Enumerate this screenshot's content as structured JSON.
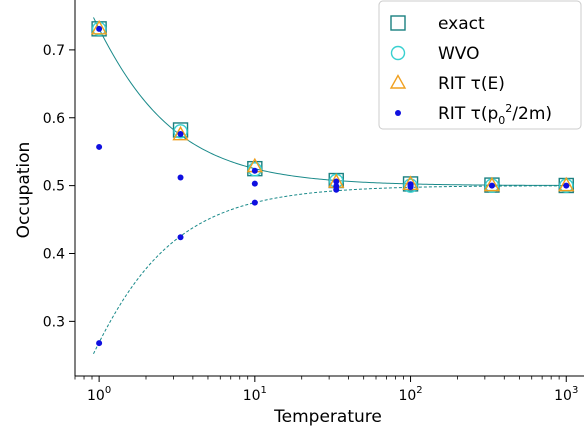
{
  "chart_data": {
    "type": "scatter",
    "xscale": "log",
    "xlabel": "Temperature",
    "ylabel": "Occupation",
    "xlim": [
      0.7,
      1300
    ],
    "ylim": [
      0.2195,
      0.7735
    ],
    "grid": false,
    "legend_position": "top-right",
    "x_ticks": [
      {
        "value": 1,
        "base": "10",
        "exp": "0"
      },
      {
        "value": 10,
        "base": "10",
        "exp": "1"
      },
      {
        "value": 100,
        "base": "10",
        "exp": "2"
      },
      {
        "value": 1000,
        "base": "10",
        "exp": "3"
      }
    ],
    "y_ticks": [
      {
        "value": 0.3,
        "label": "0.3"
      },
      {
        "value": 0.4,
        "label": "0.4"
      },
      {
        "value": 0.5,
        "label": "0.5"
      },
      {
        "value": 0.6,
        "label": "0.6"
      },
      {
        "value": 0.7,
        "label": "0.7"
      }
    ],
    "curves": [
      {
        "name": "upper-curve",
        "style": "solid",
        "color": "#1a8a8a",
        "sign": 1
      },
      {
        "name": "lower-curve",
        "style": "dashed",
        "color": "#1a8a8a",
        "sign": -1
      }
    ],
    "curve_x_range": [
      0.92,
      1050
    ],
    "series": [
      {
        "name": "exact",
        "marker": "square",
        "color": "#1a8080",
        "x": [
          1,
          3.333,
          10,
          33.33,
          100,
          333.3,
          1000
        ],
        "y": [
          0.731,
          0.582,
          0.525,
          0.5075,
          0.5025,
          0.5008,
          0.5002
        ]
      },
      {
        "name": "WVO",
        "marker": "circle",
        "color": "#38d0d0",
        "x": [
          1,
          3.333,
          10,
          33.33,
          100,
          333.3,
          1000
        ],
        "y": [
          0.731,
          0.58,
          0.524,
          0.507,
          0.5,
          0.5,
          0.5
        ]
      },
      {
        "name": "RIT τ(E)",
        "marker": "triangle",
        "color": "#f0a020",
        "x": [
          1,
          3.333,
          10,
          33.33,
          100,
          333.3,
          1000
        ],
        "y": [
          0.731,
          0.575,
          0.528,
          0.505,
          0.502,
          0.5,
          0.5
        ]
      },
      {
        "name": "RIT τ(p₀²/2m)",
        "marker": "dot",
        "color": "#1010e0",
        "x": [
          1,
          1,
          1,
          3.333,
          3.333,
          3.333,
          10,
          10,
          10,
          33.33,
          33.33,
          33.33,
          100,
          100,
          100,
          333.3,
          1000
        ],
        "y": [
          0.731,
          0.557,
          0.268,
          0.576,
          0.512,
          0.424,
          0.522,
          0.503,
          0.475,
          0.506,
          0.499,
          0.494,
          0.502,
          0.5,
          0.498,
          0.5,
          0.5
        ]
      }
    ],
    "legend": [
      {
        "marker": "square",
        "color": "#1a8080",
        "text": "exact"
      },
      {
        "marker": "circle",
        "color": "#38d0d0",
        "text": "WVO"
      },
      {
        "marker": "triangle",
        "color": "#f0a020",
        "text": "RIT τ(E)"
      },
      {
        "marker": "dot",
        "color": "#1010e0",
        "text_main": "RIT τ(p",
        "text_sub": "0",
        "text_sup": "2",
        "text_tail": "/2m)"
      }
    ]
  }
}
